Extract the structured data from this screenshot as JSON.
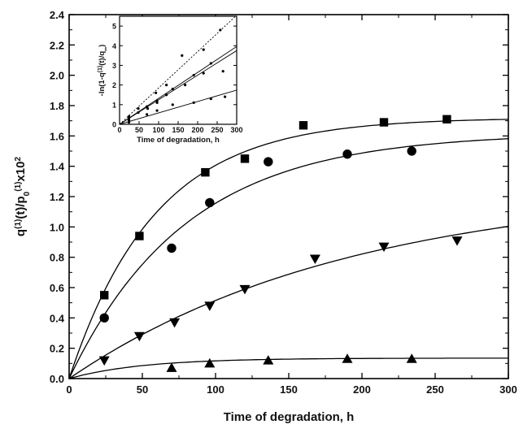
{
  "chart_data": [
    {
      "id": "main",
      "type": "scatter",
      "xlabel": "Time of degradation, h",
      "ylabel": {
        "q": "q",
        "sup1": "(1)",
        "mid": "(t)/p",
        "sub0": "0",
        "sup2": "(1)",
        "tail": "x10",
        "sup3": "2"
      },
      "xlim": [
        0,
        300
      ],
      "ylim": [
        0,
        2.4
      ],
      "xticks": [
        "0",
        "50",
        "100",
        "150",
        "200",
        "250",
        "300"
      ],
      "yticks": [
        "0.0",
        "0.2",
        "0.4",
        "0.6",
        "0.8",
        "1.0",
        "1.2",
        "1.4",
        "1.6",
        "1.8",
        "2.0",
        "2.2",
        "2.4"
      ],
      "grid": false,
      "series": [
        {
          "marker": "square",
          "points": [
            [
              24,
              0.55
            ],
            [
              48,
              0.94
            ],
            [
              93,
              1.36
            ],
            [
              120,
              1.45
            ],
            [
              160,
              1.67
            ],
            [
              215,
              1.69
            ],
            [
              258,
              1.71
            ]
          ],
          "fit": {
            "a": 1.72,
            "k": 0.017
          }
        },
        {
          "marker": "circle",
          "points": [
            [
              24,
              0.4
            ],
            [
              70,
              0.86
            ],
            [
              96,
              1.16
            ],
            [
              136,
              1.43
            ],
            [
              190,
              1.48
            ],
            [
              234,
              1.5
            ]
          ],
          "fit": {
            "a": 1.62,
            "k": 0.0125
          }
        },
        {
          "marker": "triangle-down",
          "points": [
            [
              24,
              0.12
            ],
            [
              48,
              0.28
            ],
            [
              72,
              0.37
            ],
            [
              96,
              0.48
            ],
            [
              120,
              0.59
            ],
            [
              168,
              0.79
            ],
            [
              215,
              0.87
            ],
            [
              265,
              0.91
            ]
          ],
          "fit": {
            "a": 1.27,
            "k": 0.0052
          }
        },
        {
          "marker": "triangle-up",
          "points": [
            [
              70,
              0.07
            ],
            [
              96,
              0.1
            ],
            [
              136,
              0.12
            ],
            [
              190,
              0.13
            ],
            [
              234,
              0.13
            ]
          ],
          "fit": {
            "a": 0.135,
            "k": 0.02
          }
        }
      ]
    },
    {
      "id": "inset",
      "type": "scatter",
      "xlabel": "Time of degradation, h",
      "ylabel": {
        "pre": "-ln(1-q",
        "sup": "(1)",
        "mid": "(t)/q",
        "sub": "∞",
        "post": ")"
      },
      "xlim": [
        0,
        300
      ],
      "ylim": [
        0,
        5.5
      ],
      "xticks": [
        "0",
        "50",
        "100",
        "150",
        "200",
        "250",
        "300"
      ],
      "yticks": [
        "0",
        "1",
        "2",
        "3",
        "4",
        "5"
      ],
      "grid": false,
      "series": [
        {
          "marker": "dot",
          "points": [
            [
              24,
              0.4
            ],
            [
              48,
              0.8
            ],
            [
              93,
              1.6
            ],
            [
              120,
              2.0
            ],
            [
              160,
              3.5
            ],
            [
              215,
              3.8
            ],
            [
              258,
              4.8
            ]
          ],
          "slope": 0.0185
        },
        {
          "marker": "dot",
          "points": [
            [
              24,
              0.3
            ],
            [
              70,
              0.9
            ],
            [
              96,
              1.2
            ],
            [
              136,
              1.8
            ],
            [
              190,
              2.5
            ],
            [
              234,
              3.1
            ]
          ],
          "slope": 0.0132
        },
        {
          "marker": "dot",
          "points": [
            [
              24,
              0.2
            ],
            [
              48,
              0.6
            ],
            [
              72,
              0.8
            ],
            [
              96,
              1.1
            ],
            [
              120,
              1.5
            ],
            [
              168,
              2.0
            ],
            [
              215,
              2.6
            ],
            [
              265,
              2.7
            ]
          ],
          "slope": 0.0125
        },
        {
          "marker": "dot",
          "points": [
            [
              24,
              0.1
            ],
            [
              70,
              0.5
            ],
            [
              96,
              0.7
            ],
            [
              136,
              1.0
            ],
            [
              190,
              1.1
            ],
            [
              234,
              1.3
            ],
            [
              270,
              1.4
            ]
          ],
          "slope": 0.0058
        }
      ]
    }
  ]
}
